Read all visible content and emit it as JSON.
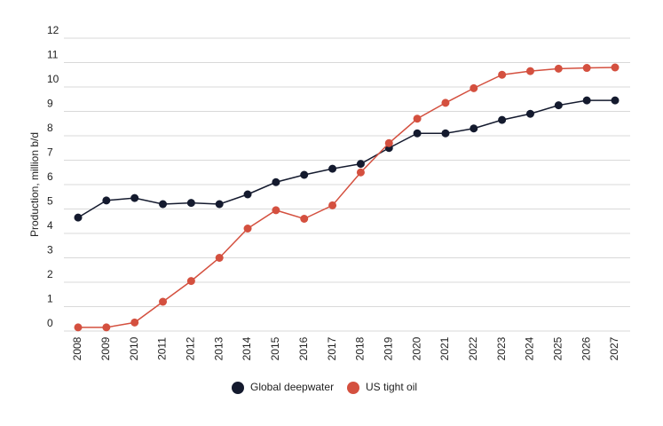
{
  "chart_data": {
    "type": "line",
    "y_label": "Production, million b/d",
    "categories": [
      "2008",
      "2009",
      "2010",
      "2011",
      "2012",
      "2013",
      "2014",
      "2015",
      "2016",
      "2017",
      "2018",
      "2019",
      "2020",
      "2021",
      "2022",
      "2023",
      "2024",
      "2025",
      "2026",
      "2027"
    ],
    "series": [
      {
        "name": "Global deepwater",
        "color": "#141a2e",
        "values": [
          4.65,
          5.35,
          5.45,
          5.2,
          5.25,
          5.2,
          5.6,
          6.1,
          6.4,
          6.65,
          6.85,
          7.5,
          8.1,
          8.1,
          8.3,
          8.65,
          8.9,
          9.25,
          9.45,
          9.45
        ]
      },
      {
        "name": "US tight oil",
        "color": "#d4503f",
        "values": [
          0.15,
          0.15,
          0.35,
          1.2,
          2.05,
          3.0,
          4.2,
          4.95,
          4.6,
          5.15,
          6.5,
          7.7,
          8.7,
          9.35,
          9.95,
          10.5,
          10.65,
          10.75,
          10.78,
          10.8
        ]
      }
    ],
    "ylim": [
      0,
      12
    ],
    "yticks": [
      0,
      1,
      2,
      3,
      4,
      5,
      6,
      7,
      8,
      9,
      10,
      11,
      12
    ],
    "grid": true
  }
}
